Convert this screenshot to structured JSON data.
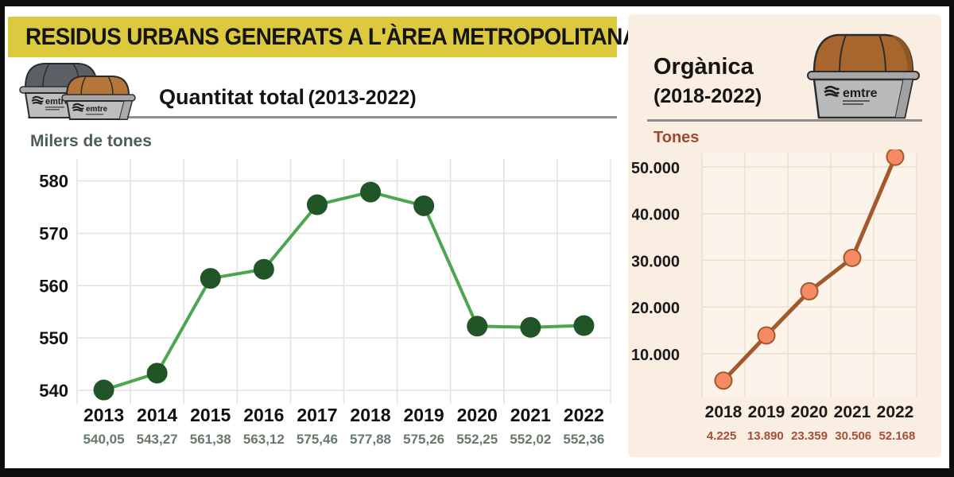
{
  "banner": {
    "title": "RESIDUS URBANS GENERATS A L'ÀREA METROPOLITANA"
  },
  "left_panel": {
    "title": "Quantitat total",
    "title_range": "(2013-2022)",
    "unit_label": "Milers de tones",
    "bin_logo_text": "emtre"
  },
  "right_panel": {
    "title": "Orgànica",
    "title_range": "(2018-2022)",
    "unit_label": "Tones",
    "bin_logo_text": "emtre"
  },
  "chart_data": [
    {
      "id": "total_chart",
      "type": "line",
      "title": "Quantitat total (2013-2022)",
      "ylabel": "Milers de tones",
      "categories": [
        "2013",
        "2014",
        "2015",
        "2016",
        "2017",
        "2018",
        "2019",
        "2020",
        "2021",
        "2022"
      ],
      "values": [
        540.05,
        543.27,
        561.38,
        563.12,
        575.46,
        577.88,
        575.26,
        552.25,
        552.02,
        552.36
      ],
      "value_labels": [
        "540,05",
        "543,27",
        "561,38",
        "563,12",
        "575,46",
        "577,88",
        "575,26",
        "552,25",
        "552,02",
        "552,36"
      ],
      "yticks": [
        540,
        550,
        560,
        570,
        580
      ],
      "ytick_labels": [
        "540",
        "550",
        "560",
        "570",
        "580"
      ],
      "ylim": [
        537.4,
        584.2
      ],
      "grid": true,
      "legend": "none",
      "line_color": "#4ba64f",
      "marker_fill": "#215427",
      "marker_stroke": "none",
      "marker_radius": 13,
      "line_width": 4,
      "grid_color": "#e2e2e2",
      "plot_bg": "#ffffff",
      "tick_color": "#111111",
      "value_color": "#66796a"
    },
    {
      "id": "organica_chart",
      "type": "line",
      "title": "Orgànica (2018-2022)",
      "ylabel": "Tones",
      "categories": [
        "2018",
        "2019",
        "2020",
        "2021",
        "2022"
      ],
      "values": [
        4225,
        13890,
        23359,
        30506,
        52168
      ],
      "value_labels": [
        "4.225",
        "13.890",
        "23.359",
        "30.506",
        "52.168"
      ],
      "yticks": [
        10000,
        20000,
        30000,
        40000,
        50000
      ],
      "ytick_labels": [
        "10.000",
        "20.000",
        "30.000",
        "40.000",
        "50.000"
      ],
      "ylim": [
        596,
        52896
      ],
      "grid": true,
      "legend": "none",
      "line_color": "#a2592b",
      "marker_fill": "#f58a64",
      "marker_stroke": "#a2592b",
      "marker_radius": 10.5,
      "line_width": 5,
      "grid_color": "#ecdfd0",
      "plot_bg": "#fcf3ea",
      "tick_color": "#1a1a1a",
      "value_color": "#a44f38"
    }
  ]
}
